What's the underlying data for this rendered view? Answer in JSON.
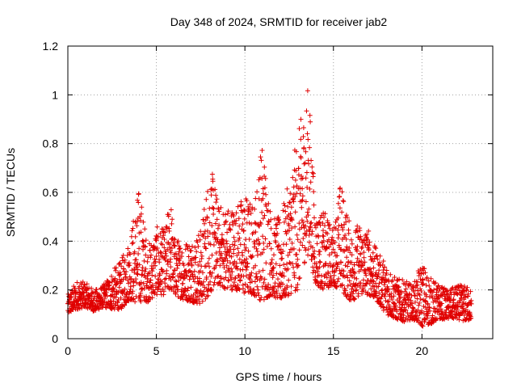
{
  "chart_data": {
    "type": "scatter",
    "title": "Day 348 of 2024, SRMTID for receiver jab2",
    "xlabel": "GPS time / hours",
    "ylabel": "SRMTID / TECUs",
    "xlim": [
      0,
      24
    ],
    "ylim": [
      0,
      1.2
    ],
    "xticks": [
      0,
      5,
      10,
      15,
      20
    ],
    "xtick_labels": [
      "0",
      "5",
      "10",
      "15",
      "20"
    ],
    "yticks": [
      0,
      0.2,
      0.4,
      0.6,
      0.8,
      1,
      1.2
    ],
    "ytick_labels": [
      "0",
      "0.2",
      "0.4",
      "0.6",
      "0.8",
      "1",
      "1.2"
    ],
    "grid": true,
    "marker": "+",
    "marker_color": "#e00000",
    "series": [
      {
        "name": "SRMTID",
        "envelope_x": [
          0.0,
          0.5,
          1.0,
          1.5,
          2.0,
          2.5,
          3.0,
          3.5,
          4.0,
          4.2,
          4.5,
          5.0,
          5.5,
          5.8,
          6.0,
          6.5,
          7.0,
          7.5,
          8.0,
          8.3,
          8.5,
          9.0,
          9.5,
          10.0,
          10.5,
          11.0,
          11.5,
          12.0,
          12.5,
          13.0,
          13.3,
          13.6,
          14.0,
          14.5,
          15.0,
          15.4,
          16.0,
          16.5,
          17.0,
          17.5,
          18.0,
          18.5,
          19.0,
          19.5,
          20.0,
          20.5,
          21.0,
          21.5,
          22.0,
          22.5,
          22.8
        ],
        "envelope_low": [
          0.1,
          0.12,
          0.13,
          0.11,
          0.13,
          0.12,
          0.12,
          0.16,
          0.14,
          0.16,
          0.15,
          0.18,
          0.18,
          0.2,
          0.18,
          0.16,
          0.15,
          0.14,
          0.18,
          0.22,
          0.22,
          0.2,
          0.2,
          0.18,
          0.18,
          0.15,
          0.18,
          0.15,
          0.18,
          0.2,
          0.3,
          0.35,
          0.22,
          0.2,
          0.22,
          0.2,
          0.15,
          0.18,
          0.18,
          0.15,
          0.1,
          0.08,
          0.07,
          0.08,
          0.05,
          0.06,
          0.08,
          0.08,
          0.08,
          0.07,
          0.08
        ],
        "envelope_high": [
          0.18,
          0.24,
          0.23,
          0.2,
          0.22,
          0.28,
          0.32,
          0.42,
          0.62,
          0.55,
          0.38,
          0.46,
          0.45,
          0.6,
          0.42,
          0.4,
          0.42,
          0.45,
          0.71,
          0.65,
          0.55,
          0.55,
          0.55,
          0.6,
          0.55,
          0.84,
          0.5,
          0.5,
          0.65,
          0.85,
          0.95,
          1.05,
          0.52,
          0.52,
          0.45,
          0.65,
          0.45,
          0.48,
          0.45,
          0.35,
          0.32,
          0.25,
          0.24,
          0.22,
          0.32,
          0.25,
          0.22,
          0.2,
          0.22,
          0.22,
          0.2
        ],
        "points_per_hour": 110
      }
    ]
  }
}
